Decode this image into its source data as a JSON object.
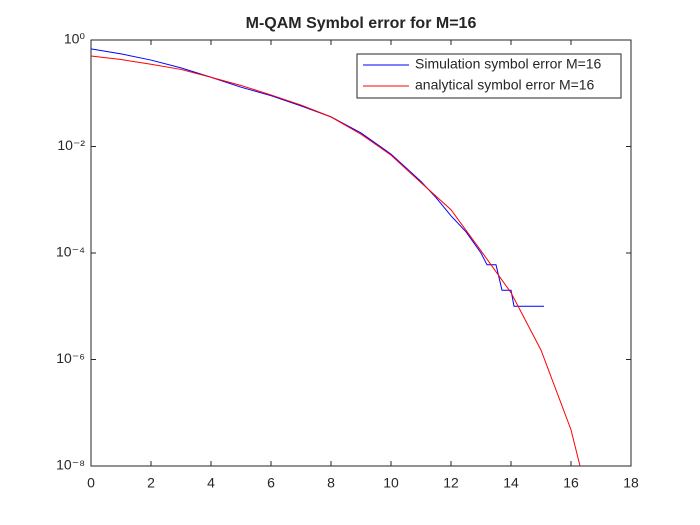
{
  "chart_data": {
    "type": "line",
    "title": "M-QAM Symbol error for M=16",
    "xlim": [
      0,
      18
    ],
    "xticks": [
      0,
      2,
      4,
      6,
      8,
      10,
      12,
      14,
      16,
      18
    ],
    "ylim": [
      1e-08,
      1
    ],
    "yticks": [
      {
        "value": 1,
        "label": "10⁰"
      },
      {
        "value": 0.01,
        "label": "10⁻²"
      },
      {
        "value": 0.0001,
        "label": "10⁻⁴"
      },
      {
        "value": 1e-06,
        "label": "10⁻⁶"
      },
      {
        "value": 1e-08,
        "label": "10⁻⁸"
      }
    ],
    "log_y": true,
    "grid": false,
    "legend": "northeast",
    "series": [
      {
        "name": "Simulation symbol error M=16",
        "color": "#0000ff",
        "x": [
          0,
          1,
          2,
          3,
          4,
          5,
          6,
          7,
          8,
          9,
          10,
          10.5,
          11,
          11.5,
          12,
          12.5,
          13,
          13.2,
          13.5,
          13.7,
          14,
          14.1,
          14.5,
          15,
          15.1
        ],
        "values": [
          0.68,
          0.55,
          0.42,
          0.3,
          0.2,
          0.13,
          0.09,
          0.058,
          0.036,
          0.018,
          0.0072,
          0.004,
          0.0022,
          0.0011,
          0.0005,
          0.00025,
          0.0001,
          6e-05,
          6e-05,
          2e-05,
          2e-05,
          1e-05,
          1e-05,
          1e-05,
          1e-05
        ]
      },
      {
        "name": "analytical symbol error M=16",
        "color": "#ff0000",
        "x": [
          0,
          1,
          2,
          3,
          4,
          5,
          6,
          7,
          8,
          9,
          10,
          11,
          12,
          13,
          14,
          15,
          16,
          16.3
        ],
        "values": [
          0.5,
          0.43,
          0.35,
          0.28,
          0.2,
          0.14,
          0.093,
          0.06,
          0.036,
          0.017,
          0.0069,
          0.0021,
          0.00065,
          0.00011,
          1.8e-05,
          1.5e-06,
          4.8e-08,
          1e-08
        ]
      }
    ]
  }
}
